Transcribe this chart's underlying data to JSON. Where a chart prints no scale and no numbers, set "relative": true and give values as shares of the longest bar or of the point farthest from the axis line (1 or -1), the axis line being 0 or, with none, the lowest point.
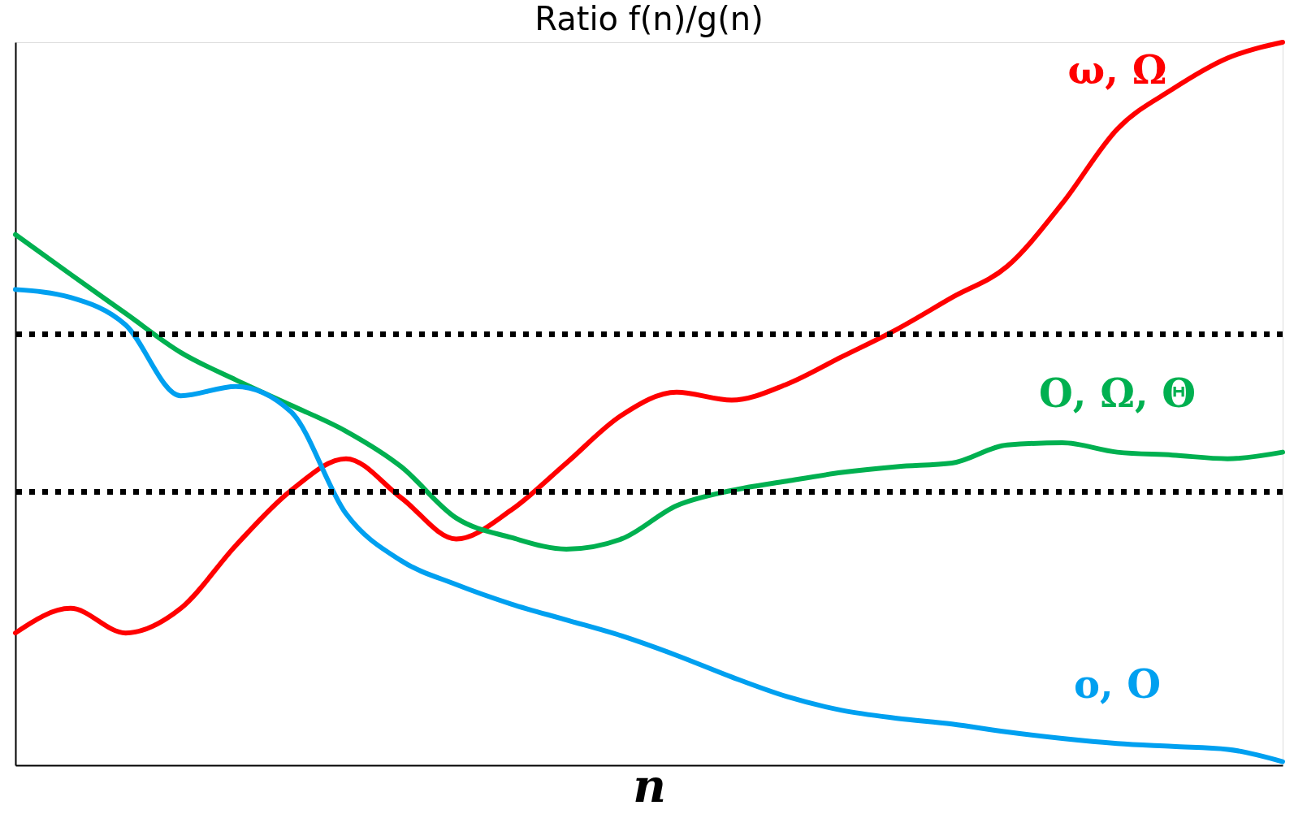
{
  "chart_data": {
    "type": "line",
    "title": "Ratio f(n)/g(n)",
    "xlabel": "n",
    "relative": true,
    "line_style": "solid",
    "marker": "none",
    "grid": false,
    "tick_labels": false,
    "categories": [
      null,
      null,
      null,
      null,
      null,
      null,
      null,
      null,
      null,
      null,
      null,
      null,
      null,
      null,
      null,
      null,
      null,
      null,
      null,
      null,
      null,
      null,
      null,
      null
    ],
    "series": [
      {
        "name": "ω, Ω",
        "color": "#ff0000",
        "values": [
          0.183,
          0.217,
          0.183,
          0.217,
          0.304,
          0.38,
          0.424,
          0.37,
          0.313,
          0.353,
          0.418,
          0.484,
          0.516,
          0.505,
          0.527,
          0.565,
          0.603,
          0.647,
          0.69,
          0.777,
          0.88,
          0.935,
          0.978,
          1
        ]
      },
      {
        "name": "Ο, Ω, Θ",
        "color": "#00b050",
        "values": [
          0.734,
          0.679,
          0.625,
          0.571,
          0.533,
          0.498,
          0.462,
          0.413,
          0.342,
          0.315,
          0.299,
          0.313,
          0.359,
          0.38,
          0.393,
          0.405,
          0.413,
          0.418,
          0.443,
          0.446,
          0.433,
          0.429,
          0.424,
          0.433
        ]
      },
      {
        "name": "ο, Ο",
        "color": "#00a0f0",
        "values": [
          0.658,
          0.647,
          0.609,
          0.511,
          0.524,
          0.489,
          0.348,
          0.283,
          0.25,
          0.223,
          0.201,
          0.179,
          0.152,
          0.122,
          0.095,
          0.076,
          0.065,
          0.057,
          0.046,
          0.037,
          0.03,
          0.026,
          0.022,
          0.005
        ]
      }
    ],
    "ref_lines": [
      {
        "axis": "y",
        "value": 0.596,
        "color": "#000000",
        "line_style": "dotted"
      },
      {
        "axis": "y",
        "value": 0.378,
        "color": "#000000",
        "line_style": "dotted"
      }
    ]
  }
}
